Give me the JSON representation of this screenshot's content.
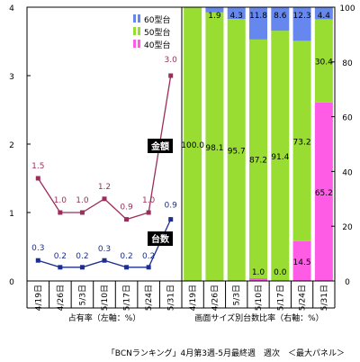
{
  "chart_data": {
    "type": "line",
    "dates": [
      "4/19日",
      "4/26日",
      "5/3日",
      "5/10日",
      "5/17日",
      "5/24日",
      "5/31日"
    ],
    "left_chart": {
      "type": "line",
      "axis_title": "占有率（左軸：%）",
      "ylim": [
        0,
        4
      ],
      "yticks": [
        "0",
        "1",
        "2",
        "3",
        "4"
      ],
      "series": [
        {
          "name": "金額",
          "color": "#9b2d5a",
          "values": [
            1.5,
            1.0,
            1.0,
            1.2,
            0.9,
            1.0,
            3.0
          ],
          "labels": [
            "1.5",
            "1.0",
            "1.0",
            "1.2",
            "0.9",
            "1.0",
            "3.0"
          ]
        },
        {
          "name": "台数",
          "color": "#1c2e8f",
          "values": [
            0.3,
            0.2,
            0.2,
            0.3,
            0.2,
            0.2,
            0.9
          ],
          "labels": [
            "0.3",
            "0.2",
            "0.2",
            "0.3",
            "0.2",
            "0.2",
            "0.9"
          ]
        }
      ]
    },
    "right_chart": {
      "type": "bar",
      "stacked": true,
      "axis_title": "画面サイズ別台数比率（右軸：%）",
      "ylim": [
        0,
        100
      ],
      "yticks": [
        "0",
        "20",
        "40",
        "60",
        "80",
        "100"
      ],
      "series": [
        {
          "name": "40型台",
          "color": "#ff5ce6",
          "values": [
            0,
            0,
            0,
            1.0,
            0,
            14.5,
            65.2
          ],
          "labels": [
            "",
            "",
            "",
            "1.0",
            "0.0",
            "14.5",
            "65.2"
          ]
        },
        {
          "name": "50型台",
          "color": "#99dd33",
          "values": [
            100.0,
            98.1,
            95.7,
            87.2,
            91.4,
            73.2,
            30.4
          ],
          "labels": [
            "100.0",
            "98.1",
            "95.7",
            "87.2",
            "91.4",
            "73.2",
            "30.4"
          ]
        },
        {
          "name": "60型台",
          "color": "#6688ee",
          "values": [
            0,
            1.9,
            4.3,
            11.8,
            8.6,
            12.3,
            4.4
          ],
          "labels": [
            "",
            "1.9",
            "4.3",
            "11.8",
            "8.6",
            "12.3",
            "4.4"
          ]
        }
      ]
    },
    "legend": [
      "60型台",
      "50型台",
      "40型台"
    ],
    "footer": "「BCNランキング」4月第3週-5月最終週　週次　＜最大パネル＞"
  }
}
